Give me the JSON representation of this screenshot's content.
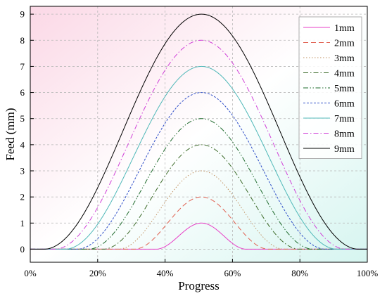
{
  "chart_data": {
    "type": "line",
    "xlabel": "Progress",
    "ylabel": "Feed (mm)",
    "xlim": [
      0,
      100
    ],
    "ylim": [
      -0.5,
      9.3
    ],
    "x_ticks": [
      0,
      20,
      40,
      60,
      80,
      100
    ],
    "x_tick_labels": [
      "0%",
      "20%",
      "40%",
      "60%",
      "80%",
      "100%"
    ],
    "y_ticks": [
      0,
      1,
      2,
      3,
      4,
      5,
      6,
      7,
      8,
      9
    ],
    "y_tick_labels": [
      "0",
      "1",
      "2",
      "3",
      "4",
      "5",
      "6",
      "7",
      "8",
      "9"
    ],
    "grid": true,
    "legend_position": "top-right",
    "background_gradient": [
      "#fbd8e6",
      "#ffffff",
      "#d6f5f0"
    ],
    "series": [
      {
        "name": "1mm",
        "peak": 1,
        "start": 37.2,
        "end": 64.2,
        "color": "#e73fc7",
        "dash": "solid"
      },
      {
        "name": "2mm",
        "peak": 2,
        "start": 30.7,
        "end": 70.8,
        "color": "#e06050",
        "dash": "longdash"
      },
      {
        "name": "3mm",
        "peak": 3,
        "start": 26.0,
        "end": 75.4,
        "color": "#c09060",
        "dash": "dotted"
      },
      {
        "name": "4mm",
        "peak": 4,
        "start": 21.5,
        "end": 80.0,
        "color": "#3d6b2a",
        "dash": "dashdot"
      },
      {
        "name": "5mm",
        "peak": 5,
        "start": 17.1,
        "end": 84.0,
        "color": "#1f6b2d",
        "dash": "dashdotdot"
      },
      {
        "name": "6mm",
        "peak": 6,
        "start": 13.8,
        "end": 87.7,
        "color": "#2f4fc8",
        "dash": "shortdash"
      },
      {
        "name": "7mm",
        "peak": 7,
        "start": 10.2,
        "end": 91.1,
        "color": "#4fb8b8",
        "dash": "solid"
      },
      {
        "name": "8mm",
        "peak": 8,
        "start": 7.1,
        "end": 93.8,
        "color": "#d040d8",
        "dash": "dashdot"
      },
      {
        "name": "9mm",
        "peak": 9,
        "start": 4.0,
        "end": 97.5,
        "color": "#000000",
        "dash": "solid"
      }
    ],
    "peak_x": 50.8
  }
}
